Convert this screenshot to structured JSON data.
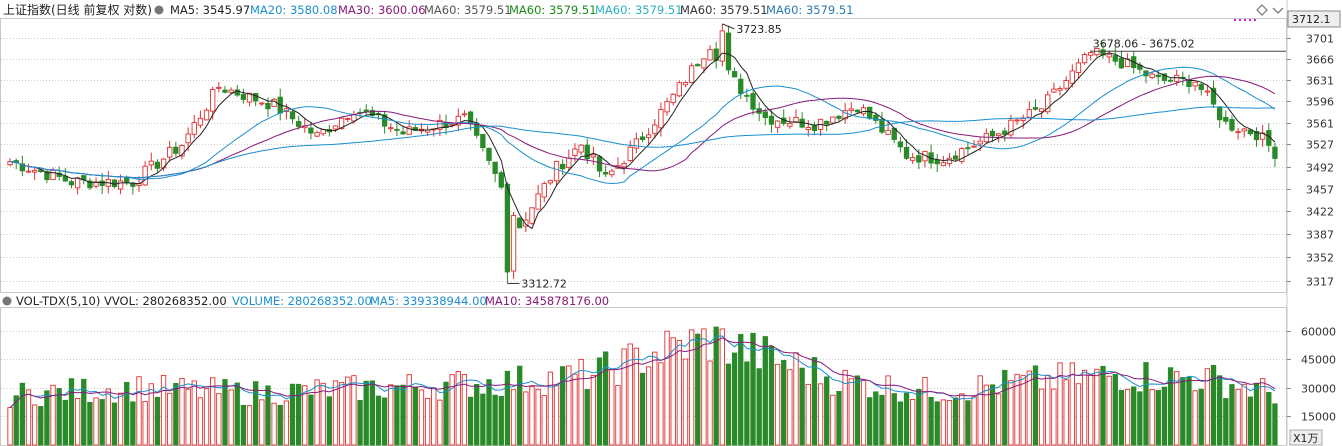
{
  "header": {
    "title": "上证指数(日线 前复权 对数)",
    "ma5_label": "MA5: 3545.97",
    "ma20_label": "MA20: 3580.08",
    "ma30_label": "MA30: 3600.06",
    "ma60_labels": [
      "MA60: 3579.51",
      "MA60: 3579.51",
      "MA60: 3579.51",
      "MA60: 3579.51",
      "MA60: 3579.51"
    ]
  },
  "price_tag": "3712.1",
  "annotations": {
    "high": "3723.85",
    "low": "3312.72",
    "range": "3678.06 - 3675.02"
  },
  "volume_header": {
    "name": "VOL-TDX(5,10)",
    "vvol": "VVOL: 280268352.00",
    "volume": "VOLUME: 280268352.00",
    "ma5": "MA5: 339338944.00",
    "ma10": "MA10: 345878176.00"
  },
  "volume_unit": "X1万",
  "colors": {
    "up": "#e03030",
    "down": "#2a8a2a",
    "ma5": "#222222",
    "ma20": "#1a8fd0",
    "ma30": "#8a1a7a",
    "ma60_text": "#2a9a8a",
    "grid": "#cccccc",
    "marker": "#d020d0"
  },
  "chart_data": {
    "type": "candlestick",
    "price_ticks": [
      3701,
      3666,
      3631,
      3596,
      3561,
      3527,
      3492,
      3457,
      3422,
      3387,
      3352,
      3317
    ],
    "volume_ticks": [
      60000,
      45000,
      30000,
      15000
    ],
    "price_range": [
      3300,
      3732
    ],
    "volume_range": [
      0,
      72000
    ],
    "ohlc_anchor_points": [
      {
        "i": 0,
        "c": 3500
      },
      {
        "i": 10,
        "c": 3468
      },
      {
        "i": 20,
        "c": 3468
      },
      {
        "i": 28,
        "c": 3527
      },
      {
        "i": 34,
        "c": 3620
      },
      {
        "i": 43,
        "c": 3590
      },
      {
        "i": 50,
        "c": 3540
      },
      {
        "i": 56,
        "c": 3585
      },
      {
        "i": 64,
        "c": 3545
      },
      {
        "i": 70,
        "c": 3560
      },
      {
        "i": 74,
        "c": 3568
      },
      {
        "i": 79,
        "c": 3478
      },
      {
        "i": 83,
        "c": 3400
      },
      {
        "i": 89,
        "c": 3490
      },
      {
        "i": 93,
        "c": 3527
      },
      {
        "i": 97,
        "c": 3472
      },
      {
        "i": 102,
        "c": 3527
      },
      {
        "i": 108,
        "c": 3604
      },
      {
        "i": 114,
        "c": 3690
      },
      {
        "i": 117,
        "c": 3640
      },
      {
        "i": 123,
        "c": 3570
      },
      {
        "i": 131,
        "c": 3560
      },
      {
        "i": 138,
        "c": 3590
      },
      {
        "i": 146,
        "c": 3510
      },
      {
        "i": 152,
        "c": 3505
      },
      {
        "i": 160,
        "c": 3540
      },
      {
        "i": 168,
        "c": 3585
      },
      {
        "i": 176,
        "c": 3675
      },
      {
        "i": 181,
        "c": 3660
      },
      {
        "i": 187,
        "c": 3630
      },
      {
        "i": 193,
        "c": 3630
      },
      {
        "i": 198,
        "c": 3560
      },
      {
        "i": 203,
        "c": 3545
      },
      {
        "i": 206,
        "c": 3515
      }
    ],
    "candle_count": 207,
    "high_point": {
      "i": 116,
      "value": 3723.85
    },
    "low_point": {
      "i": 81,
      "value": 3312.72
    },
    "range_line": {
      "start": 176,
      "value": 3678.06
    },
    "volume_anchor_points": [
      {
        "i": 0,
        "v": 27000
      },
      {
        "i": 20,
        "v": 31000
      },
      {
        "i": 40,
        "v": 28000
      },
      {
        "i": 60,
        "v": 31000
      },
      {
        "i": 80,
        "v": 34000
      },
      {
        "i": 95,
        "v": 38000
      },
      {
        "i": 105,
        "v": 50000
      },
      {
        "i": 114,
        "v": 57000
      },
      {
        "i": 125,
        "v": 46000
      },
      {
        "i": 135,
        "v": 35000
      },
      {
        "i": 150,
        "v": 29000
      },
      {
        "i": 165,
        "v": 34000
      },
      {
        "i": 180,
        "v": 38000
      },
      {
        "i": 195,
        "v": 36000
      },
      {
        "i": 206,
        "v": 28000
      }
    ]
  }
}
